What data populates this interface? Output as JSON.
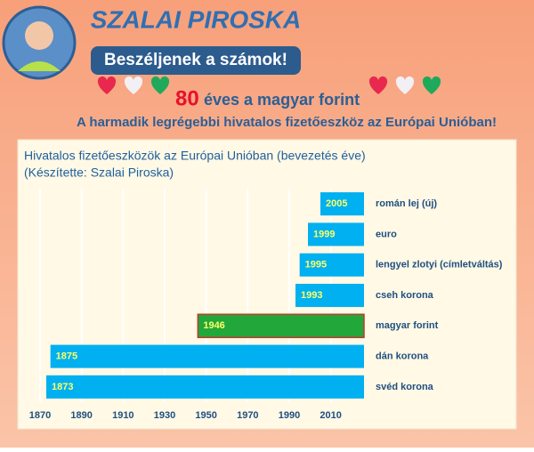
{
  "header": {
    "name": "SZALAI PIROSKA",
    "badge": "Beszéljenek a számok!",
    "headline_number": "80",
    "headline_text": "éves a magyar forint",
    "subheadline": "A harmadik legrégebbi hivatalos fizetőeszköz az Európai Unióban!"
  },
  "chart_data": {
    "type": "bar",
    "orientation": "horizontal",
    "title": "Hivatalos fizetőeszközök az Európai Unióban (bevezetés éve)",
    "subtitle": "(Készítette: Szalai Piroska)",
    "categories": [
      "román lej (új)",
      "euro",
      "lengyel zlotyi (címletváltás)",
      "cseh korona",
      "magyar forint",
      "dán korona",
      "svéd korona"
    ],
    "values": [
      2005,
      1999,
      1995,
      1993,
      1946,
      1875,
      1873
    ],
    "colors": [
      "#00b0f0",
      "#00b0f0",
      "#00b0f0",
      "#00b0f0",
      "#22a83a",
      "#00b0f0",
      "#00b0f0"
    ],
    "xlim": [
      1864,
      2026
    ],
    "xticks": [
      1870,
      1890,
      1910,
      1930,
      1950,
      1970,
      1990,
      2010
    ],
    "grid": true
  }
}
